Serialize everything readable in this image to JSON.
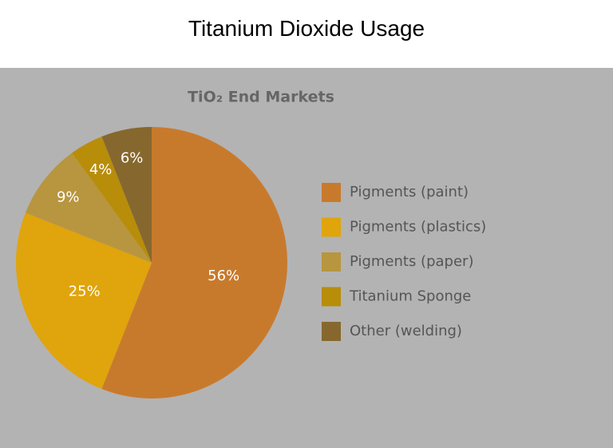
{
  "header": {
    "title": "Titanium Dioxide Usage"
  },
  "chart_data": {
    "type": "pie",
    "title": "TiO₂ End Markets",
    "categories": [
      "Pigments (paint)",
      "Pigments (plastics)",
      "Pigments (paper)",
      "Titanium Sponge",
      "Other (welding)"
    ],
    "values": [
      56,
      25,
      9,
      4,
      6
    ],
    "value_labels": [
      "56%",
      "25%",
      "9%",
      "4%",
      "6%"
    ],
    "colors": [
      "#c87a2c",
      "#e0a40c",
      "#b8963f",
      "#b88d0a",
      "#86682e"
    ],
    "legend": "right"
  }
}
